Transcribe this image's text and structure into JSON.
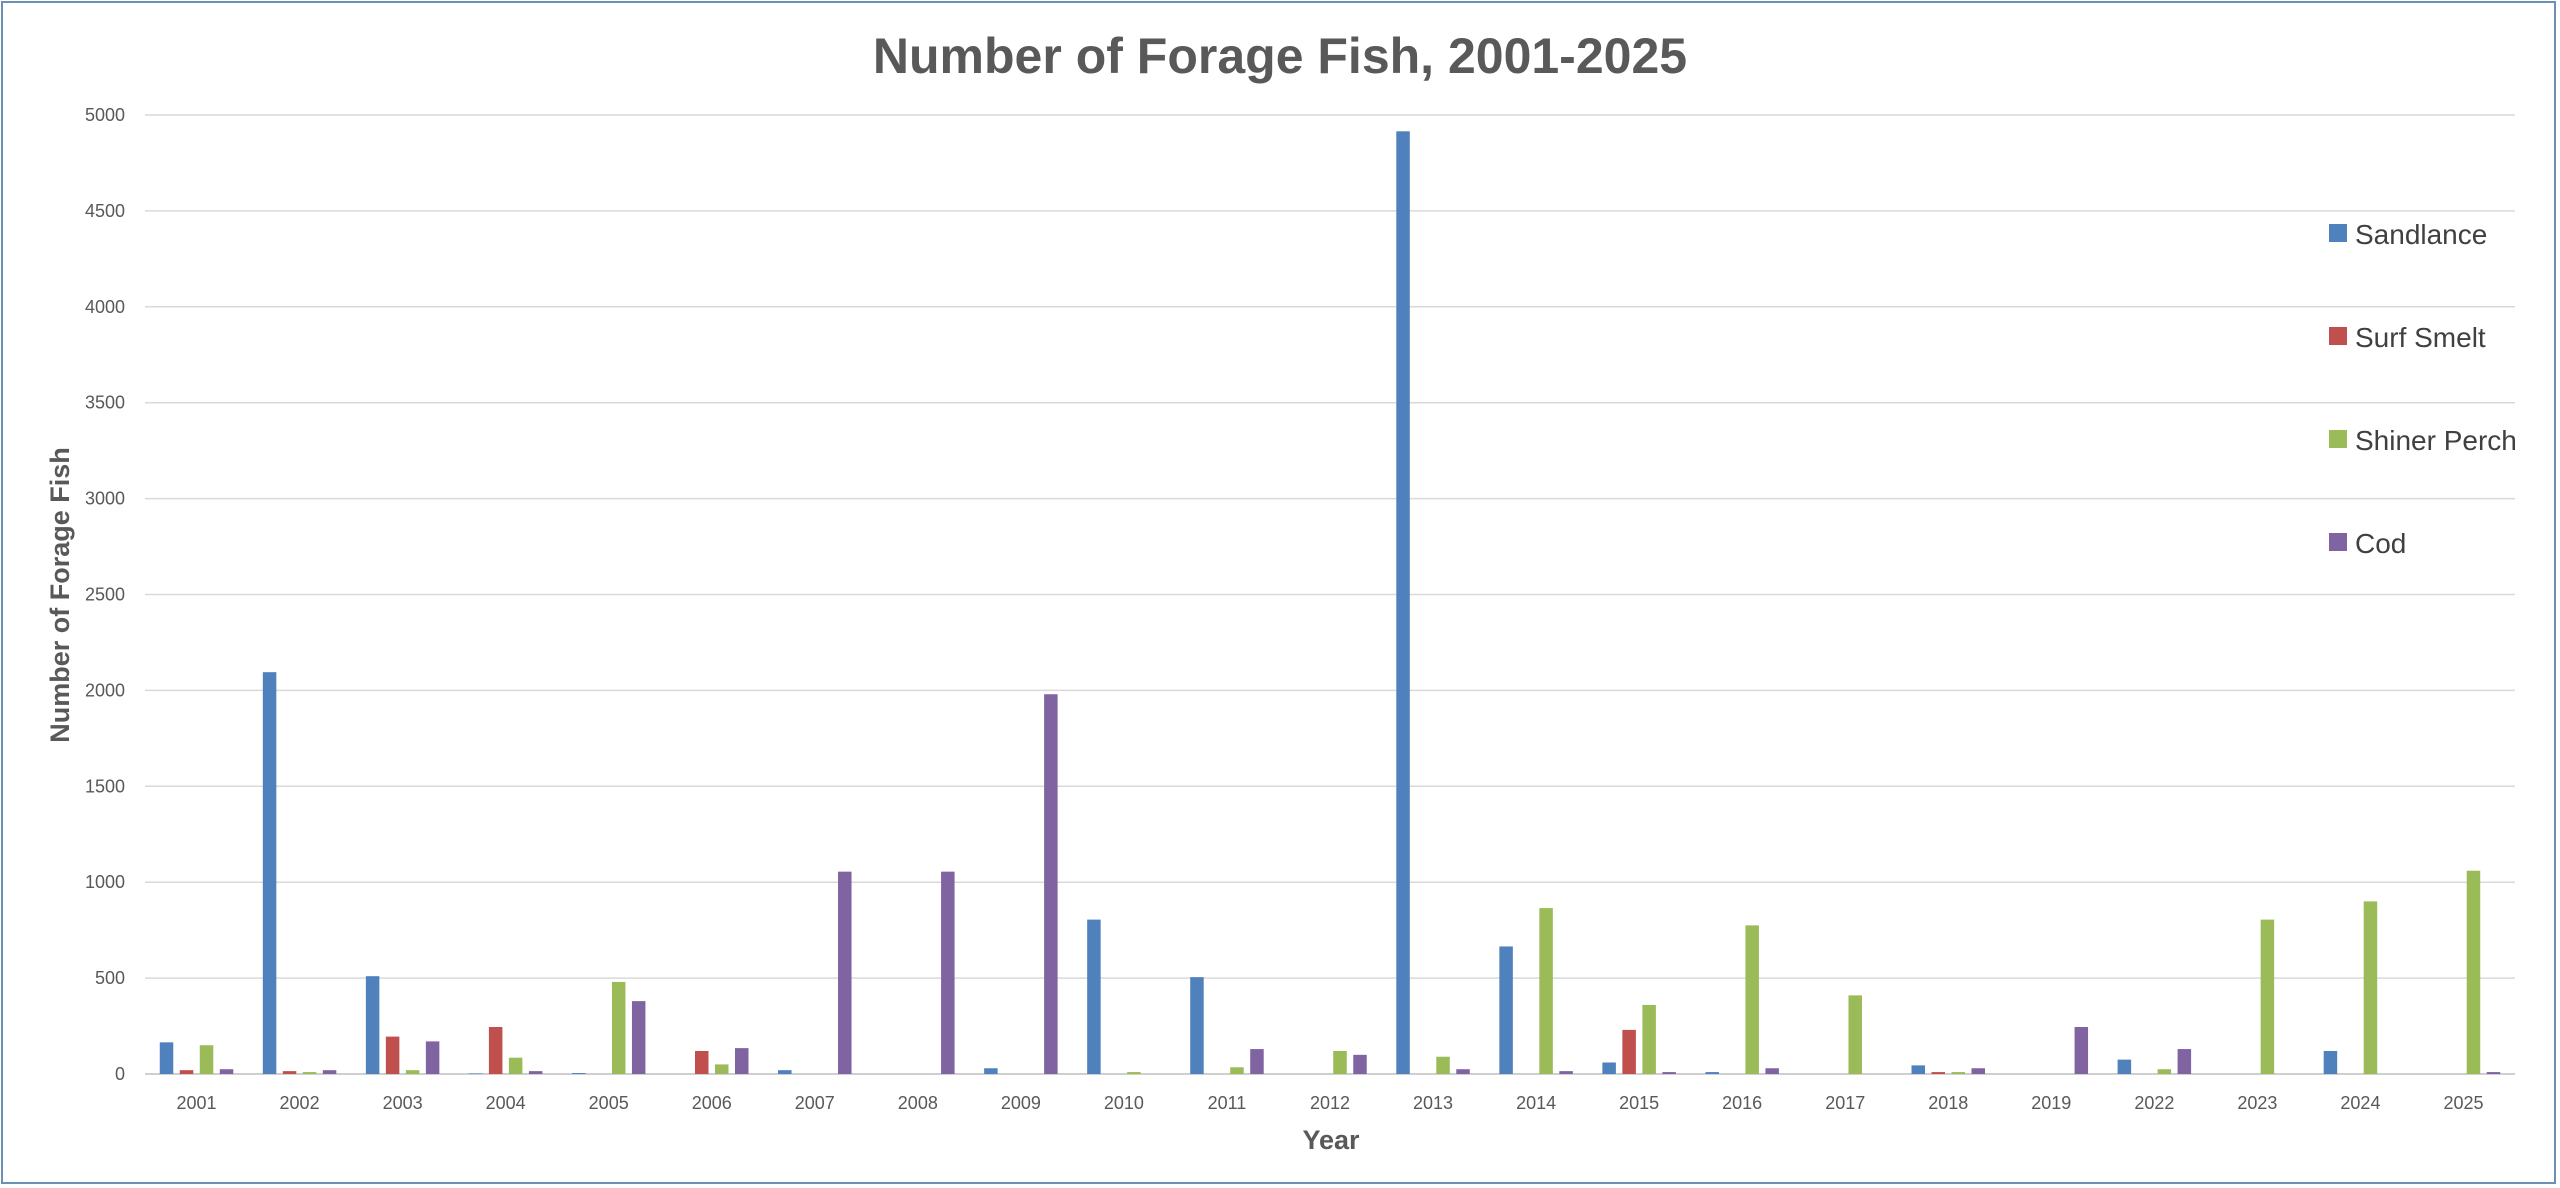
{
  "chart_data": {
    "type": "bar",
    "title": "Number of Forage Fish, 2001-2025",
    "xlabel": "Year",
    "ylabel": "Number of Forage Fish",
    "ylim": [
      0,
      5000
    ],
    "yticks": [
      0,
      500,
      1000,
      1500,
      2000,
      2500,
      3000,
      3500,
      4000,
      4500,
      5000
    ],
    "grid": true,
    "legend_position": "right",
    "categories": [
      "2001",
      "2002",
      "2003",
      "2004",
      "2005",
      "2006",
      "2007",
      "2008",
      "2009",
      "2010",
      "2011",
      "2012",
      "2013",
      "2014",
      "2015",
      "2016",
      "2017",
      "2018",
      "2019",
      "2022",
      "2023",
      "2024",
      "2025"
    ],
    "series": [
      {
        "name": "Sandlance",
        "color": "#4f81bd",
        "values": [
          165,
          2095,
          510,
          3,
          5,
          0,
          20,
          0,
          30,
          805,
          505,
          0,
          4915,
          665,
          60,
          10,
          0,
          45,
          0,
          75,
          0,
          120,
          0
        ]
      },
      {
        "name": "Surf Smelt",
        "color": "#c0504d",
        "values": [
          20,
          15,
          195,
          245,
          0,
          120,
          0,
          0,
          0,
          0,
          0,
          0,
          0,
          0,
          230,
          0,
          0,
          10,
          0,
          0,
          0,
          0,
          0
        ]
      },
      {
        "name": "Shiner Perch",
        "color": "#9bbb59",
        "values": [
          150,
          10,
          20,
          85,
          480,
          50,
          0,
          0,
          0,
          10,
          35,
          120,
          90,
          865,
          360,
          775,
          410,
          10,
          0,
          25,
          805,
          900,
          1060
        ]
      },
      {
        "name": "Cod",
        "color": "#8064a2",
        "values": [
          25,
          20,
          170,
          15,
          380,
          135,
          1055,
          1055,
          1980,
          0,
          130,
          100,
          25,
          15,
          10,
          30,
          0,
          30,
          245,
          130,
          0,
          0,
          10
        ]
      }
    ]
  }
}
